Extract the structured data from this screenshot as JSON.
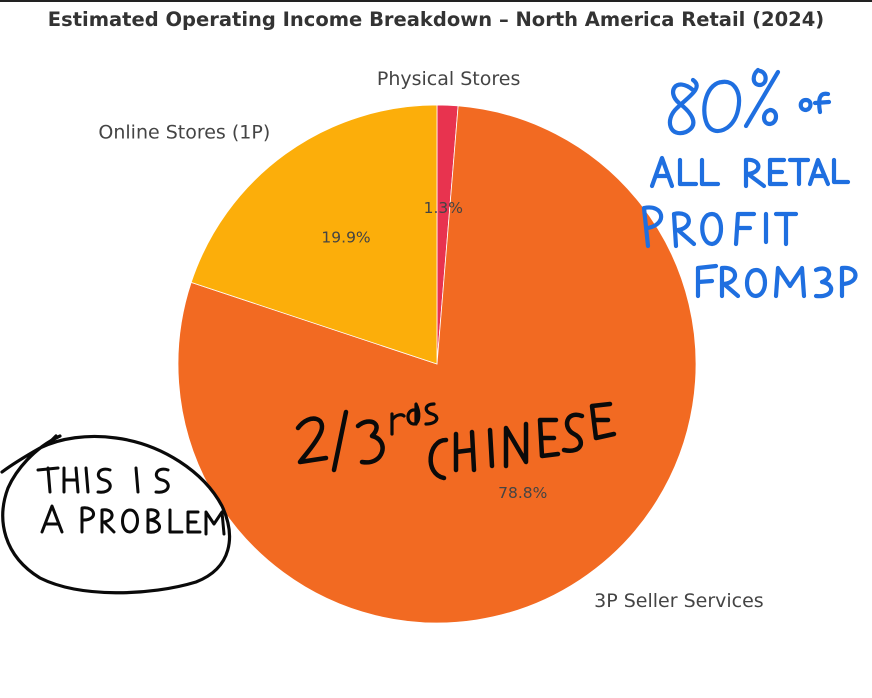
{
  "colors": {
    "physical_stores": "#e8334f",
    "online_stores": "#fcae0a",
    "seller_services": "#f26a22",
    "annotation_blue": "#1f6fe0",
    "annotation_black": "#0a0a0a"
  },
  "chart_data": {
    "type": "pie",
    "title": "Estimated Operating Income Breakdown – North America Retail (2024)",
    "slices": [
      {
        "label": "Physical Stores",
        "value": 1.3,
        "value_label": "1.3%",
        "color": "#e8334f"
      },
      {
        "label": "3P Seller Services",
        "value": 78.8,
        "value_label": "78.8%",
        "color": "#f26a22"
      },
      {
        "label": "Online Stores (1P)",
        "value": 19.9,
        "value_label": "19.9%",
        "color": "#fcae0a"
      }
    ],
    "start_angle": "top",
    "direction": "clockwise",
    "legend": "none"
  },
  "annotations": {
    "blue_note": [
      "80% of",
      "all retail",
      "profit",
      "from 3P"
    ],
    "chinese_note": [
      "2/3rds",
      "CHINESE"
    ],
    "problem_note": [
      "THIS IS",
      "A PROBLEM"
    ]
  }
}
